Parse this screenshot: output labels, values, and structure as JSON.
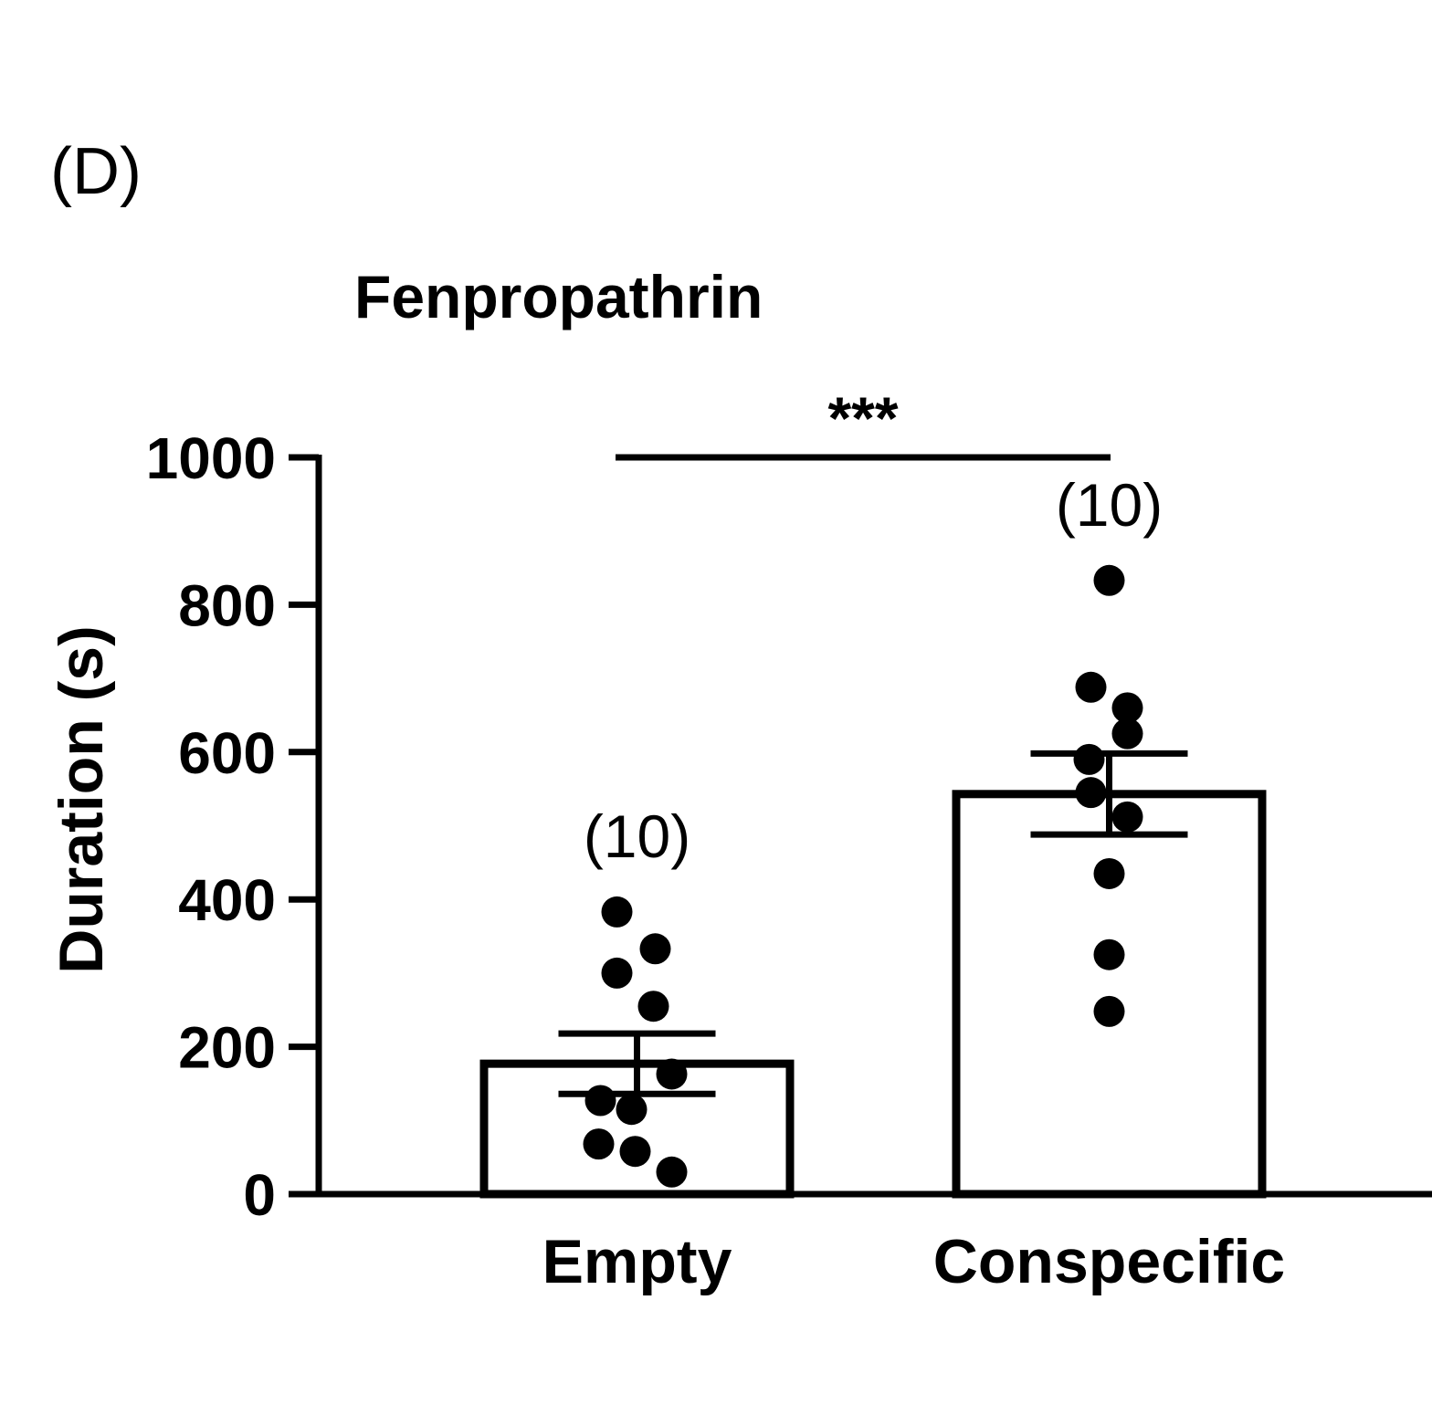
{
  "panel_label": "(D)",
  "chart_data": {
    "type": "bar",
    "title": "Fenpropathrin",
    "xlabel": "",
    "ylabel": "Duration (s)",
    "ylim": [
      0,
      1000
    ],
    "yticks": [
      0,
      200,
      400,
      600,
      800,
      1000
    ],
    "ytick_labels": [
      "0",
      "200",
      "400",
      "600",
      "800",
      "1000"
    ],
    "categories": [
      "Empty",
      "Conspecific"
    ],
    "values": [
      177,
      543
    ],
    "error": [
      41,
      55
    ],
    "n_labels": [
      "(10)",
      "(10)"
    ],
    "points": [
      [
        383,
        333,
        300,
        255,
        163,
        127,
        115,
        68,
        58,
        30
      ],
      [
        833,
        688,
        660,
        625,
        590,
        545,
        512,
        435,
        325,
        248
      ]
    ],
    "annotations": [
      {
        "text": "***",
        "from_category": "Empty",
        "to_category": "Conspecific",
        "y": 1000
      }
    ],
    "grid": false,
    "legend": "none"
  }
}
